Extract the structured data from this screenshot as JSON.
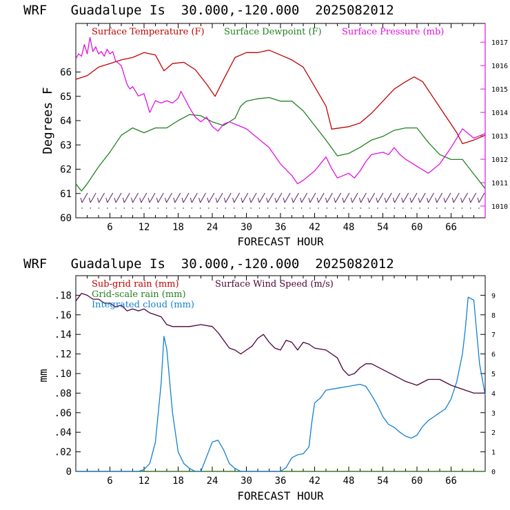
{
  "chart_data": [
    {
      "type": "line",
      "title": "WRF   Guadalupe Is  30.000,-120.000  2025082012",
      "xlabel": "FORECAST HOUR",
      "ylabel": "Degrees F",
      "xlim": [
        0,
        72
      ],
      "ylim": [
        60,
        68
      ],
      "y2lim": [
        1009.5,
        1017.8
      ],
      "x_ticks": [
        "6",
        "12",
        "18",
        "24",
        "30",
        "36",
        "42",
        "48",
        "54",
        "60",
        "66"
      ],
      "y_ticks": [
        "60",
        "61",
        "62",
        "63",
        "64",
        "65",
        "66"
      ],
      "y2_ticks": [
        "1010",
        "1011",
        "1012",
        "1013",
        "1014",
        "1015",
        "1016",
        "1017"
      ],
      "wind_barbs": "row of wind barbs along the bottom of the panel",
      "series": [
        {
          "name": "Surface Temperature (F)",
          "color": "#c00000",
          "axis": "left",
          "x": [
            0,
            2,
            4,
            6,
            8,
            10,
            12,
            14,
            15.5,
            17,
            19,
            21,
            23,
            24.5,
            26,
            28,
            30,
            32,
            34,
            36,
            38,
            40,
            42,
            44,
            45,
            48,
            50,
            52,
            54,
            56,
            58,
            59.5,
            61,
            63,
            65,
            67,
            68,
            70,
            72
          ],
          "y": [
            65.7,
            65.85,
            66.2,
            66.35,
            66.5,
            66.6,
            66.8,
            66.7,
            66.05,
            66.35,
            66.4,
            66.1,
            65.5,
            65.0,
            65.7,
            66.6,
            66.8,
            66.8,
            66.9,
            66.7,
            66.5,
            66.2,
            65.4,
            64.6,
            63.65,
            63.75,
            63.9,
            64.3,
            64.8,
            65.3,
            65.6,
            65.8,
            65.6,
            64.9,
            64.2,
            63.5,
            63.05,
            63.2,
            63.4
          ]
        },
        {
          "name": "Surface Dewpoint (F)",
          "color": "#208020",
          "axis": "left",
          "x": [
            0,
            1,
            2,
            4,
            6,
            8,
            10,
            12,
            14,
            16,
            18,
            20,
            22,
            24,
            26,
            28,
            29,
            30,
            32,
            34,
            36,
            38,
            40,
            42,
            44,
            46,
            48,
            50,
            52,
            54,
            56,
            58,
            60,
            62,
            64,
            66,
            68,
            70,
            72
          ],
          "y": [
            61.4,
            61.1,
            61.4,
            62.1,
            62.7,
            63.4,
            63.7,
            63.5,
            63.7,
            63.7,
            64.0,
            64.25,
            64.2,
            63.95,
            63.8,
            64.1,
            64.6,
            64.8,
            64.9,
            64.95,
            64.8,
            64.8,
            64.4,
            63.8,
            63.2,
            62.55,
            62.65,
            62.9,
            63.2,
            63.35,
            63.6,
            63.7,
            63.7,
            63.1,
            62.6,
            62.4,
            62.4,
            61.8,
            61.2
          ]
        },
        {
          "name": "Surface Pressure (mb)",
          "color": "#e010e0",
          "axis": "right",
          "x": [
            0,
            0.5,
            1,
            1.5,
            2,
            2.5,
            3,
            3.5,
            4,
            4.5,
            5,
            5.5,
            6,
            6.5,
            7,
            8,
            9,
            9.5,
            10,
            11,
            12,
            13,
            14,
            15,
            16,
            17,
            18,
            18.5,
            20,
            21,
            22,
            23,
            24,
            25,
            26,
            27,
            28,
            30,
            32,
            34,
            36,
            38,
            39,
            40,
            42,
            43,
            44,
            45,
            46,
            47,
            48,
            49,
            50,
            51,
            52,
            54,
            55,
            56,
            57,
            58,
            60,
            62,
            64,
            66,
            68,
            70,
            72
          ],
          "y": [
            1016.3,
            1016.5,
            1016.4,
            1016.9,
            1016.5,
            1017.2,
            1016.6,
            1016.8,
            1016.5,
            1016.6,
            1016.4,
            1016.7,
            1016.5,
            1016.6,
            1016.2,
            1016,
            1015.2,
            1015,
            1015.1,
            1014.7,
            1014.8,
            1014.0,
            1014.5,
            1014.4,
            1014.5,
            1014.4,
            1014.6,
            1014.9,
            1014.2,
            1013.8,
            1013.6,
            1013.8,
            1013.4,
            1013.2,
            1013.5,
            1013.6,
            1013.5,
            1013.3,
            1012.9,
            1012.5,
            1011.8,
            1011.3,
            1010.95,
            1011.1,
            1011.5,
            1011.8,
            1012.1,
            1011.6,
            1011.2,
            1011.3,
            1011.4,
            1011.2,
            1011.5,
            1011.9,
            1012.2,
            1012.3,
            1012.2,
            1012.5,
            1012.2,
            1012.0,
            1011.7,
            1011.4,
            1011.8,
            1012.5,
            1013.3,
            1012.9,
            1013.1
          ]
        }
      ]
    },
    {
      "type": "line",
      "title": "WRF   Guadalupe Is  30.000,-120.000  2025082012",
      "xlabel": "FORECAST HOUR",
      "ylabel": "mm",
      "xlim": [
        0,
        72
      ],
      "ylim": [
        0,
        0.2
      ],
      "y2lim": [
        0,
        10
      ],
      "x_ticks": [
        "6",
        "12",
        "18",
        "24",
        "30",
        "36",
        "42",
        "48",
        "54",
        "60",
        "66"
      ],
      "y_ticks": [
        "0",
        ".02",
        ".04",
        ".06",
        ".08",
        ".10",
        ".12",
        ".14",
        ".16",
        ".18"
      ],
      "y2_ticks": [
        "0",
        "1",
        "2",
        "3",
        "4",
        "5",
        "6",
        "7",
        "8",
        "9"
      ],
      "series": [
        {
          "name": "Sub-grid rain (mm)",
          "color": "#c00000",
          "axis": "left",
          "x": [
            0,
            72
          ],
          "y": [
            0,
            0
          ]
        },
        {
          "name": "Grid-scale rain (mm)",
          "color": "#208020",
          "axis": "left",
          "x": [
            0,
            72
          ],
          "y": [
            0,
            0
          ]
        },
        {
          "name": "Integrated cloud (mm)",
          "color": "#1080d0",
          "axis": "left",
          "x": [
            0,
            11,
            12,
            13,
            14,
            15,
            15.5,
            16,
            17,
            18,
            19,
            20,
            21,
            22,
            23,
            24,
            25,
            26,
            27,
            28,
            29,
            30,
            36,
            37,
            38,
            39,
            40,
            41,
            41.5,
            42,
            43,
            44,
            46,
            48,
            50,
            51,
            52,
            53,
            54,
            55,
            56,
            57,
            58,
            59,
            60,
            61,
            62,
            63,
            64,
            65,
            66,
            67,
            68,
            68.5,
            69,
            70,
            71,
            72
          ],
          "y": [
            0,
            0,
            0.002,
            0.008,
            0.03,
            0.09,
            0.138,
            0.125,
            0.06,
            0.02,
            0.008,
            0.003,
            0,
            0,
            0.015,
            0.03,
            0.032,
            0.022,
            0.008,
            0.003,
            0,
            0,
            0,
            0.004,
            0.014,
            0.017,
            0.018,
            0.025,
            0.05,
            0.07,
            0.075,
            0.083,
            0.085,
            0.087,
            0.089,
            0.087,
            0.078,
            0.068,
            0.056,
            0.048,
            0.045,
            0.04,
            0.036,
            0.034,
            0.037,
            0.046,
            0.052,
            0.056,
            0.06,
            0.064,
            0.074,
            0.092,
            0.12,
            0.145,
            0.178,
            0.175,
            0.11,
            0.078
          ]
        },
        {
          "name": "Surface Wind Speed (m/s)",
          "color": "#4a003a",
          "axis": "right",
          "x": [
            0,
            1,
            2,
            3,
            4,
            5,
            6,
            7,
            8,
            9,
            10,
            11,
            12,
            13,
            14,
            15,
            16,
            17,
            18,
            20,
            22,
            24,
            25,
            26,
            27,
            28,
            29,
            30,
            31,
            32,
            33,
            34,
            35,
            36,
            37,
            38,
            39,
            40,
            41,
            42,
            44,
            46,
            47,
            48,
            49,
            50,
            51,
            52,
            54,
            56,
            58,
            60,
            62,
            64,
            66,
            68,
            70,
            72
          ],
          "y": [
            8.7,
            9.1,
            9.0,
            8.8,
            8.8,
            8.6,
            8.6,
            8.4,
            8.5,
            8.2,
            8.3,
            8.2,
            8.3,
            8.1,
            8.0,
            7.9,
            7.5,
            7.4,
            7.4,
            7.4,
            7.5,
            7.4,
            7.1,
            6.7,
            6.3,
            6.2,
            6.0,
            6.2,
            6.4,
            6.8,
            7.0,
            6.6,
            6.3,
            6.2,
            6.7,
            6.6,
            6.2,
            6.6,
            6.5,
            6.3,
            6.2,
            5.8,
            5.2,
            4.9,
            5.0,
            5.3,
            5.5,
            5.5,
            5.2,
            4.9,
            4.6,
            4.4,
            4.7,
            4.7,
            4.4,
            4.2,
            4.0,
            4.0
          ]
        }
      ]
    }
  ]
}
